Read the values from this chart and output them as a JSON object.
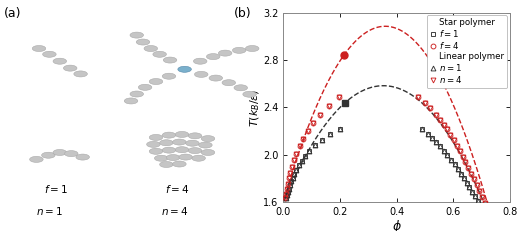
{
  "xlabel": "$\\phi$",
  "ylabel": "$T\\left(k_B/\\varepsilon\\right)$",
  "xlim": [
    0.0,
    0.8
  ],
  "ylim": [
    1.6,
    3.2
  ],
  "xticks": [
    0.0,
    0.2,
    0.4,
    0.6,
    0.8
  ],
  "yticks": [
    1.6,
    2.0,
    2.4,
    2.8,
    3.2
  ],
  "star_f1_phi_L": [
    0.01,
    0.013,
    0.016,
    0.019,
    0.023,
    0.027,
    0.033,
    0.038,
    0.045,
    0.055,
    0.065,
    0.075,
    0.09,
    0.11,
    0.135,
    0.165,
    0.2
  ],
  "star_f1_T_L": [
    1.635,
    1.66,
    1.685,
    1.715,
    1.745,
    1.775,
    1.808,
    1.84,
    1.875,
    1.913,
    1.95,
    1.988,
    2.033,
    2.08,
    2.127,
    2.175,
    2.22
  ],
  "star_f1_phi_R": [
    0.49,
    0.51,
    0.525,
    0.54,
    0.555,
    0.567,
    0.58,
    0.593,
    0.607,
    0.619,
    0.629,
    0.638,
    0.648,
    0.657,
    0.667,
    0.677,
    0.687,
    0.697,
    0.707
  ],
  "star_f1_T_R": [
    2.22,
    2.175,
    2.143,
    2.108,
    2.07,
    2.035,
    2.0,
    1.96,
    1.918,
    1.878,
    1.84,
    1.805,
    1.765,
    1.728,
    1.688,
    1.65,
    1.613,
    1.575,
    1.54
  ],
  "star_f4_phi_L": [
    0.006,
    0.009,
    0.012,
    0.015,
    0.019,
    0.024,
    0.03,
    0.037,
    0.046,
    0.057,
    0.07,
    0.086,
    0.105,
    0.13,
    0.16,
    0.195
  ],
  "star_f4_T_L": [
    1.635,
    1.672,
    1.712,
    1.755,
    1.8,
    1.848,
    1.9,
    1.953,
    2.01,
    2.07,
    2.133,
    2.2,
    2.268,
    2.34,
    2.415,
    2.49
  ],
  "star_f4_phi_R": [
    0.475,
    0.5,
    0.52,
    0.54,
    0.555,
    0.567,
    0.578,
    0.59,
    0.602,
    0.614,
    0.624,
    0.634,
    0.644,
    0.654,
    0.664,
    0.673,
    0.683,
    0.693,
    0.703,
    0.712
  ],
  "star_f4_T_R": [
    2.49,
    2.44,
    2.392,
    2.34,
    2.295,
    2.255,
    2.215,
    2.17,
    2.123,
    2.075,
    2.03,
    1.985,
    1.938,
    1.89,
    1.84,
    1.793,
    1.743,
    1.693,
    1.643,
    1.595
  ],
  "lin_n1_phi_L": [
    0.01,
    0.013,
    0.016,
    0.019,
    0.023,
    0.027,
    0.033,
    0.038,
    0.045,
    0.055,
    0.065,
    0.075,
    0.09,
    0.11,
    0.135,
    0.165,
    0.2
  ],
  "lin_n1_T_L": [
    1.635,
    1.66,
    1.685,
    1.715,
    1.745,
    1.775,
    1.808,
    1.84,
    1.875,
    1.913,
    1.95,
    1.988,
    2.033,
    2.08,
    2.127,
    2.175,
    2.22
  ],
  "lin_n1_phi_R": [
    0.49,
    0.51,
    0.525,
    0.54,
    0.555,
    0.567,
    0.58,
    0.593,
    0.607,
    0.619,
    0.629,
    0.638,
    0.648,
    0.657,
    0.667,
    0.677,
    0.687,
    0.697,
    0.707
  ],
  "lin_n1_T_R": [
    2.22,
    2.175,
    2.143,
    2.108,
    2.07,
    2.035,
    2.0,
    1.96,
    1.918,
    1.878,
    1.84,
    1.805,
    1.765,
    1.728,
    1.688,
    1.65,
    1.613,
    1.575,
    1.54
  ],
  "lin_n4_phi_L": [
    0.006,
    0.009,
    0.012,
    0.015,
    0.019,
    0.024,
    0.03,
    0.037,
    0.046,
    0.057,
    0.07,
    0.086,
    0.105,
    0.13,
    0.16,
    0.195
  ],
  "lin_n4_T_L": [
    1.635,
    1.672,
    1.712,
    1.755,
    1.8,
    1.848,
    1.9,
    1.953,
    2.01,
    2.07,
    2.133,
    2.2,
    2.268,
    2.34,
    2.415,
    2.49
  ],
  "lin_n4_phi_R": [
    0.475,
    0.5,
    0.52,
    0.54,
    0.555,
    0.567,
    0.578,
    0.59,
    0.602,
    0.614,
    0.624,
    0.634,
    0.644,
    0.654,
    0.664,
    0.673,
    0.683,
    0.693,
    0.703,
    0.712
  ],
  "lin_n4_T_R": [
    2.49,
    2.44,
    2.392,
    2.34,
    2.295,
    2.255,
    2.215,
    2.17,
    2.123,
    2.075,
    2.03,
    1.985,
    1.938,
    1.89,
    1.84,
    1.793,
    1.743,
    1.693,
    1.643,
    1.595
  ],
  "critical_black_phi": 0.218,
  "critical_black_T": 2.44,
  "critical_red_phi": 0.215,
  "critical_red_T": 2.845,
  "color_black": "#333333",
  "color_red": "#cc2020",
  "background": "#ffffff",
  "bead_color": "#c5c5c5",
  "bead_edge": "#aaaaaa",
  "bead_blue": "#7ab0cc",
  "bead_blue_edge": "#5588aa"
}
